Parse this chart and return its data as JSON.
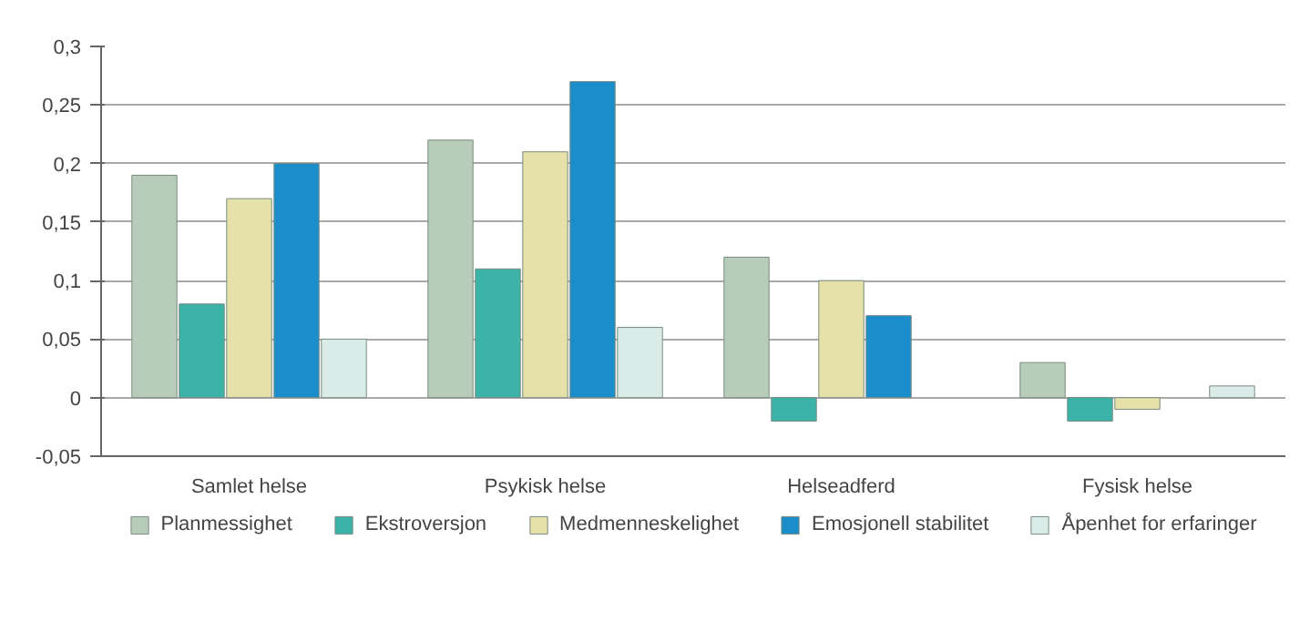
{
  "chart_data": {
    "type": "bar",
    "categories": [
      "Samlet helse",
      "Psykisk helse",
      "Helseadferd",
      "Fysisk helse"
    ],
    "series": [
      {
        "name": "Planmessighet",
        "color": "#b7cdb9",
        "values": [
          0.19,
          0.22,
          0.12,
          0.03
        ]
      },
      {
        "name": "Ekstroversjon",
        "color": "#3bb3a9",
        "values": [
          0.08,
          0.11,
          -0.02,
          -0.02
        ]
      },
      {
        "name": "Medmenneskelighet",
        "color": "#e5e1a9",
        "values": [
          0.17,
          0.21,
          0.1,
          -0.01
        ]
      },
      {
        "name": "Emosjonell stabilitet",
        "color": "#1b8dca",
        "values": [
          0.2,
          0.27,
          0.07,
          null
        ]
      },
      {
        "name": "Åpenhet for erfaringer",
        "color": "#d9ece7",
        "values": [
          0.05,
          0.06,
          null,
          0.01
        ]
      }
    ],
    "ylim": [
      -0.05,
      0.3
    ],
    "yticks": [
      {
        "value": -0.05,
        "label": "-0,05"
      },
      0,
      {
        "value": 0.05,
        "label": "0,05"
      },
      {
        "value": 0.1,
        "label": "0,1"
      },
      {
        "value": 0.15,
        "label": "0,15"
      },
      {
        "value": 0.2,
        "label": "0,2"
      },
      {
        "value": 0.25,
        "label": "0,25"
      },
      {
        "value": 0.3,
        "label": "0,3"
      }
    ],
    "grid": "y",
    "legend": "bottom"
  }
}
